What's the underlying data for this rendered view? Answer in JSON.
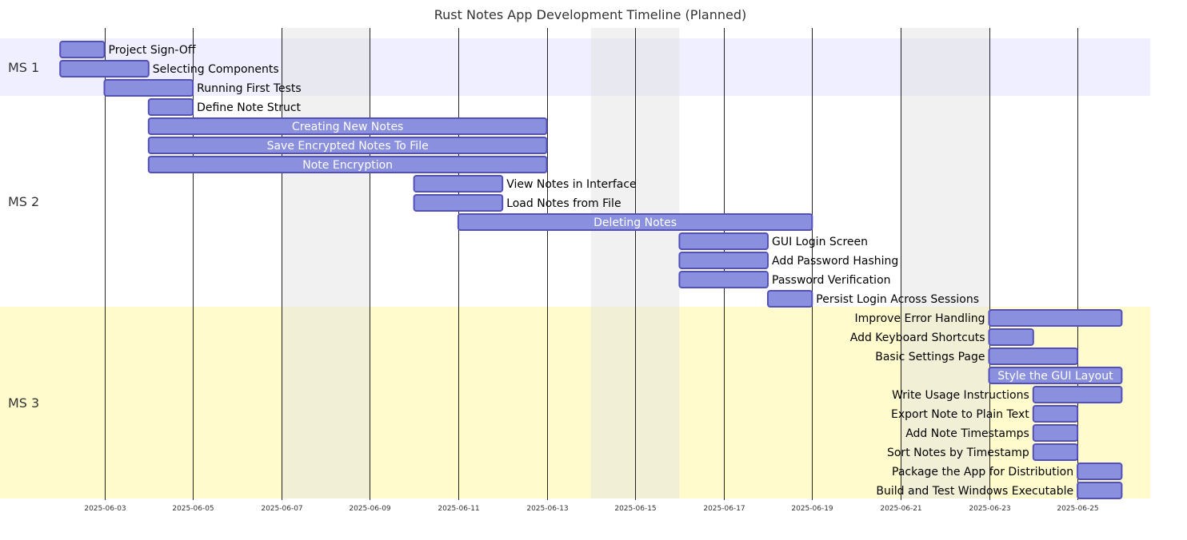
{
  "chart_data": {
    "type": "gantt",
    "title": "Rust Notes App Development Timeline (Planned)",
    "x_range": [
      "2025-06-01",
      "2025-06-27"
    ],
    "ticks": [
      "2025-06-03",
      "2025-06-05",
      "2025-06-07",
      "2025-06-09",
      "2025-06-11",
      "2025-06-13",
      "2025-06-15",
      "2025-06-17",
      "2025-06-19",
      "2025-06-21",
      "2025-06-23",
      "2025-06-25"
    ],
    "weekends": [
      [
        "2025-06-07",
        "2025-06-09"
      ],
      [
        "2025-06-14",
        "2025-06-16"
      ],
      [
        "2025-06-21",
        "2025-06-23"
      ]
    ],
    "weekend_color": "#e0e0e0",
    "bar_fill": "#8a90dd",
    "bar_stroke": "#534fbc",
    "sections": [
      {
        "name": "MS 1",
        "color": "#efefff"
      },
      {
        "name": "MS 2",
        "color": "#ffffff"
      },
      {
        "name": "MS 3",
        "color": "#fffbcc"
      }
    ],
    "tasks": [
      {
        "section": 0,
        "label": "Project Sign-Off",
        "start": "2025-06-02",
        "end": "2025-06-03"
      },
      {
        "section": 0,
        "label": "Selecting Components",
        "start": "2025-06-02",
        "end": "2025-06-04"
      },
      {
        "section": 0,
        "label": "Running First Tests",
        "start": "2025-06-03",
        "end": "2025-06-05"
      },
      {
        "section": 1,
        "label": "Define Note Struct",
        "start": "2025-06-04",
        "end": "2025-06-05"
      },
      {
        "section": 1,
        "label": "Creating New Notes",
        "start": "2025-06-04",
        "end": "2025-06-13"
      },
      {
        "section": 1,
        "label": "Save Encrypted Notes To File",
        "start": "2025-06-04",
        "end": "2025-06-13"
      },
      {
        "section": 1,
        "label": "Note Encryption",
        "start": "2025-06-04",
        "end": "2025-06-13"
      },
      {
        "section": 1,
        "label": "View Notes in Interface",
        "start": "2025-06-10",
        "end": "2025-06-12"
      },
      {
        "section": 1,
        "label": "Load Notes from File",
        "start": "2025-06-10",
        "end": "2025-06-12"
      },
      {
        "section": 1,
        "label": "Deleting Notes",
        "start": "2025-06-11",
        "end": "2025-06-19"
      },
      {
        "section": 1,
        "label": "GUI Login Screen",
        "start": "2025-06-16",
        "end": "2025-06-18"
      },
      {
        "section": 1,
        "label": "Add Password Hashing",
        "start": "2025-06-16",
        "end": "2025-06-18"
      },
      {
        "section": 1,
        "label": "Password Verification",
        "start": "2025-06-16",
        "end": "2025-06-18"
      },
      {
        "section": 1,
        "label": "Persist Login Across Sessions",
        "start": "2025-06-18",
        "end": "2025-06-19"
      },
      {
        "section": 2,
        "label": "Improve Error Handling",
        "start": "2025-06-23",
        "end": "2025-06-26"
      },
      {
        "section": 2,
        "label": "Add Keyboard Shortcuts",
        "start": "2025-06-23",
        "end": "2025-06-24"
      },
      {
        "section": 2,
        "label": "Basic Settings Page",
        "start": "2025-06-23",
        "end": "2025-06-25"
      },
      {
        "section": 2,
        "label": "Style the GUI Layout",
        "start": "2025-06-23",
        "end": "2025-06-26"
      },
      {
        "section": 2,
        "label": "Write Usage Instructions",
        "start": "2025-06-24",
        "end": "2025-06-26"
      },
      {
        "section": 2,
        "label": "Export Note to Plain Text",
        "start": "2025-06-24",
        "end": "2025-06-25"
      },
      {
        "section": 2,
        "label": "Add Note Timestamps",
        "start": "2025-06-24",
        "end": "2025-06-25"
      },
      {
        "section": 2,
        "label": "Sort Notes by Timestamp",
        "start": "2025-06-24",
        "end": "2025-06-25"
      },
      {
        "section": 2,
        "label": "Package the App for Distribution",
        "start": "2025-06-25",
        "end": "2025-06-26"
      },
      {
        "section": 2,
        "label": "Build and Test Windows Executable",
        "start": "2025-06-25",
        "end": "2025-06-26"
      }
    ]
  }
}
